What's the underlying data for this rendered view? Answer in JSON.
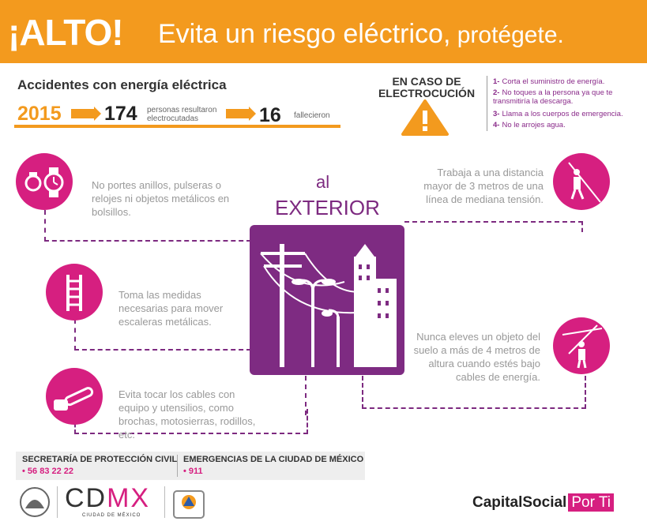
{
  "header": {
    "alto": "¡ALTO!",
    "headline": "Evita un riesgo eléctrico,",
    "headline_light": " protégete."
  },
  "stats": {
    "title": "Accidentes con energía eléctrica",
    "year": "2015",
    "electrocuted_count": "174",
    "electrocuted_label_1": "personas resultaron",
    "electrocuted_label_2": "electrocutadas",
    "deaths_count": "16",
    "deaths_label": "fallecieron"
  },
  "electrocution": {
    "title_1": "EN CASO DE",
    "title_2": "ELECTROCUCIÓN",
    "items": [
      {
        "num": "1-",
        "text": "Corta el suministro de energía."
      },
      {
        "num": "2-",
        "text": "No toques a la persona ya que te transmitiría la descarga."
      },
      {
        "num": "3-",
        "text": "Llama a los cuerpos de emergencia."
      },
      {
        "num": "4-",
        "text": "No le arrojes agua."
      }
    ]
  },
  "center": {
    "al": "al",
    "exterior": "EXTERIOR"
  },
  "tips": {
    "rings": "No portes anillos, pulseras o relojes ni objetos metálicos en bolsillos.",
    "ladder": "Toma las medidas necesarias para mover escaleras metálicas.",
    "chainsaw": "Evita tocar los cables con equipo y utensilios, como brochas, motosierras, rodillos, etc.",
    "distance": "Trabaja a una distancia mayor de 3 metros de una línea de mediana tensión.",
    "raise": "Nunca eleves un objeto del suelo a más de 4 metros de altura cuando estés bajo cables de energía."
  },
  "footer": {
    "civil_title": "SECRETARÍA DE PROTECCIÓN CIVIL",
    "civil_phone": "• 56 83 22 22",
    "emerg_title": "EMERGENCIAS DE LA CIUDAD DE MÉXICO",
    "emerg_phone": "• 911",
    "cdmx_cd": "CD",
    "cdmx_mx": "MX",
    "cdmx_sub": "CIUDAD DE MÉXICO",
    "capital_social": "CapitalSocial",
    "capital_porti": "Por Ti"
  },
  "colors": {
    "orange": "#f39a1e",
    "magenta": "#d61f80",
    "purple": "#7e2b82"
  },
  "icons": [
    "ring-icon",
    "watch-icon",
    "ladder-icon",
    "chainsaw-icon",
    "worker-climbing-icon",
    "worker-raising-pole-icon",
    "warning-icon",
    "city-power-lines-icon",
    "cdmx-crest-icon",
    "civil-protection-logo-icon"
  ]
}
